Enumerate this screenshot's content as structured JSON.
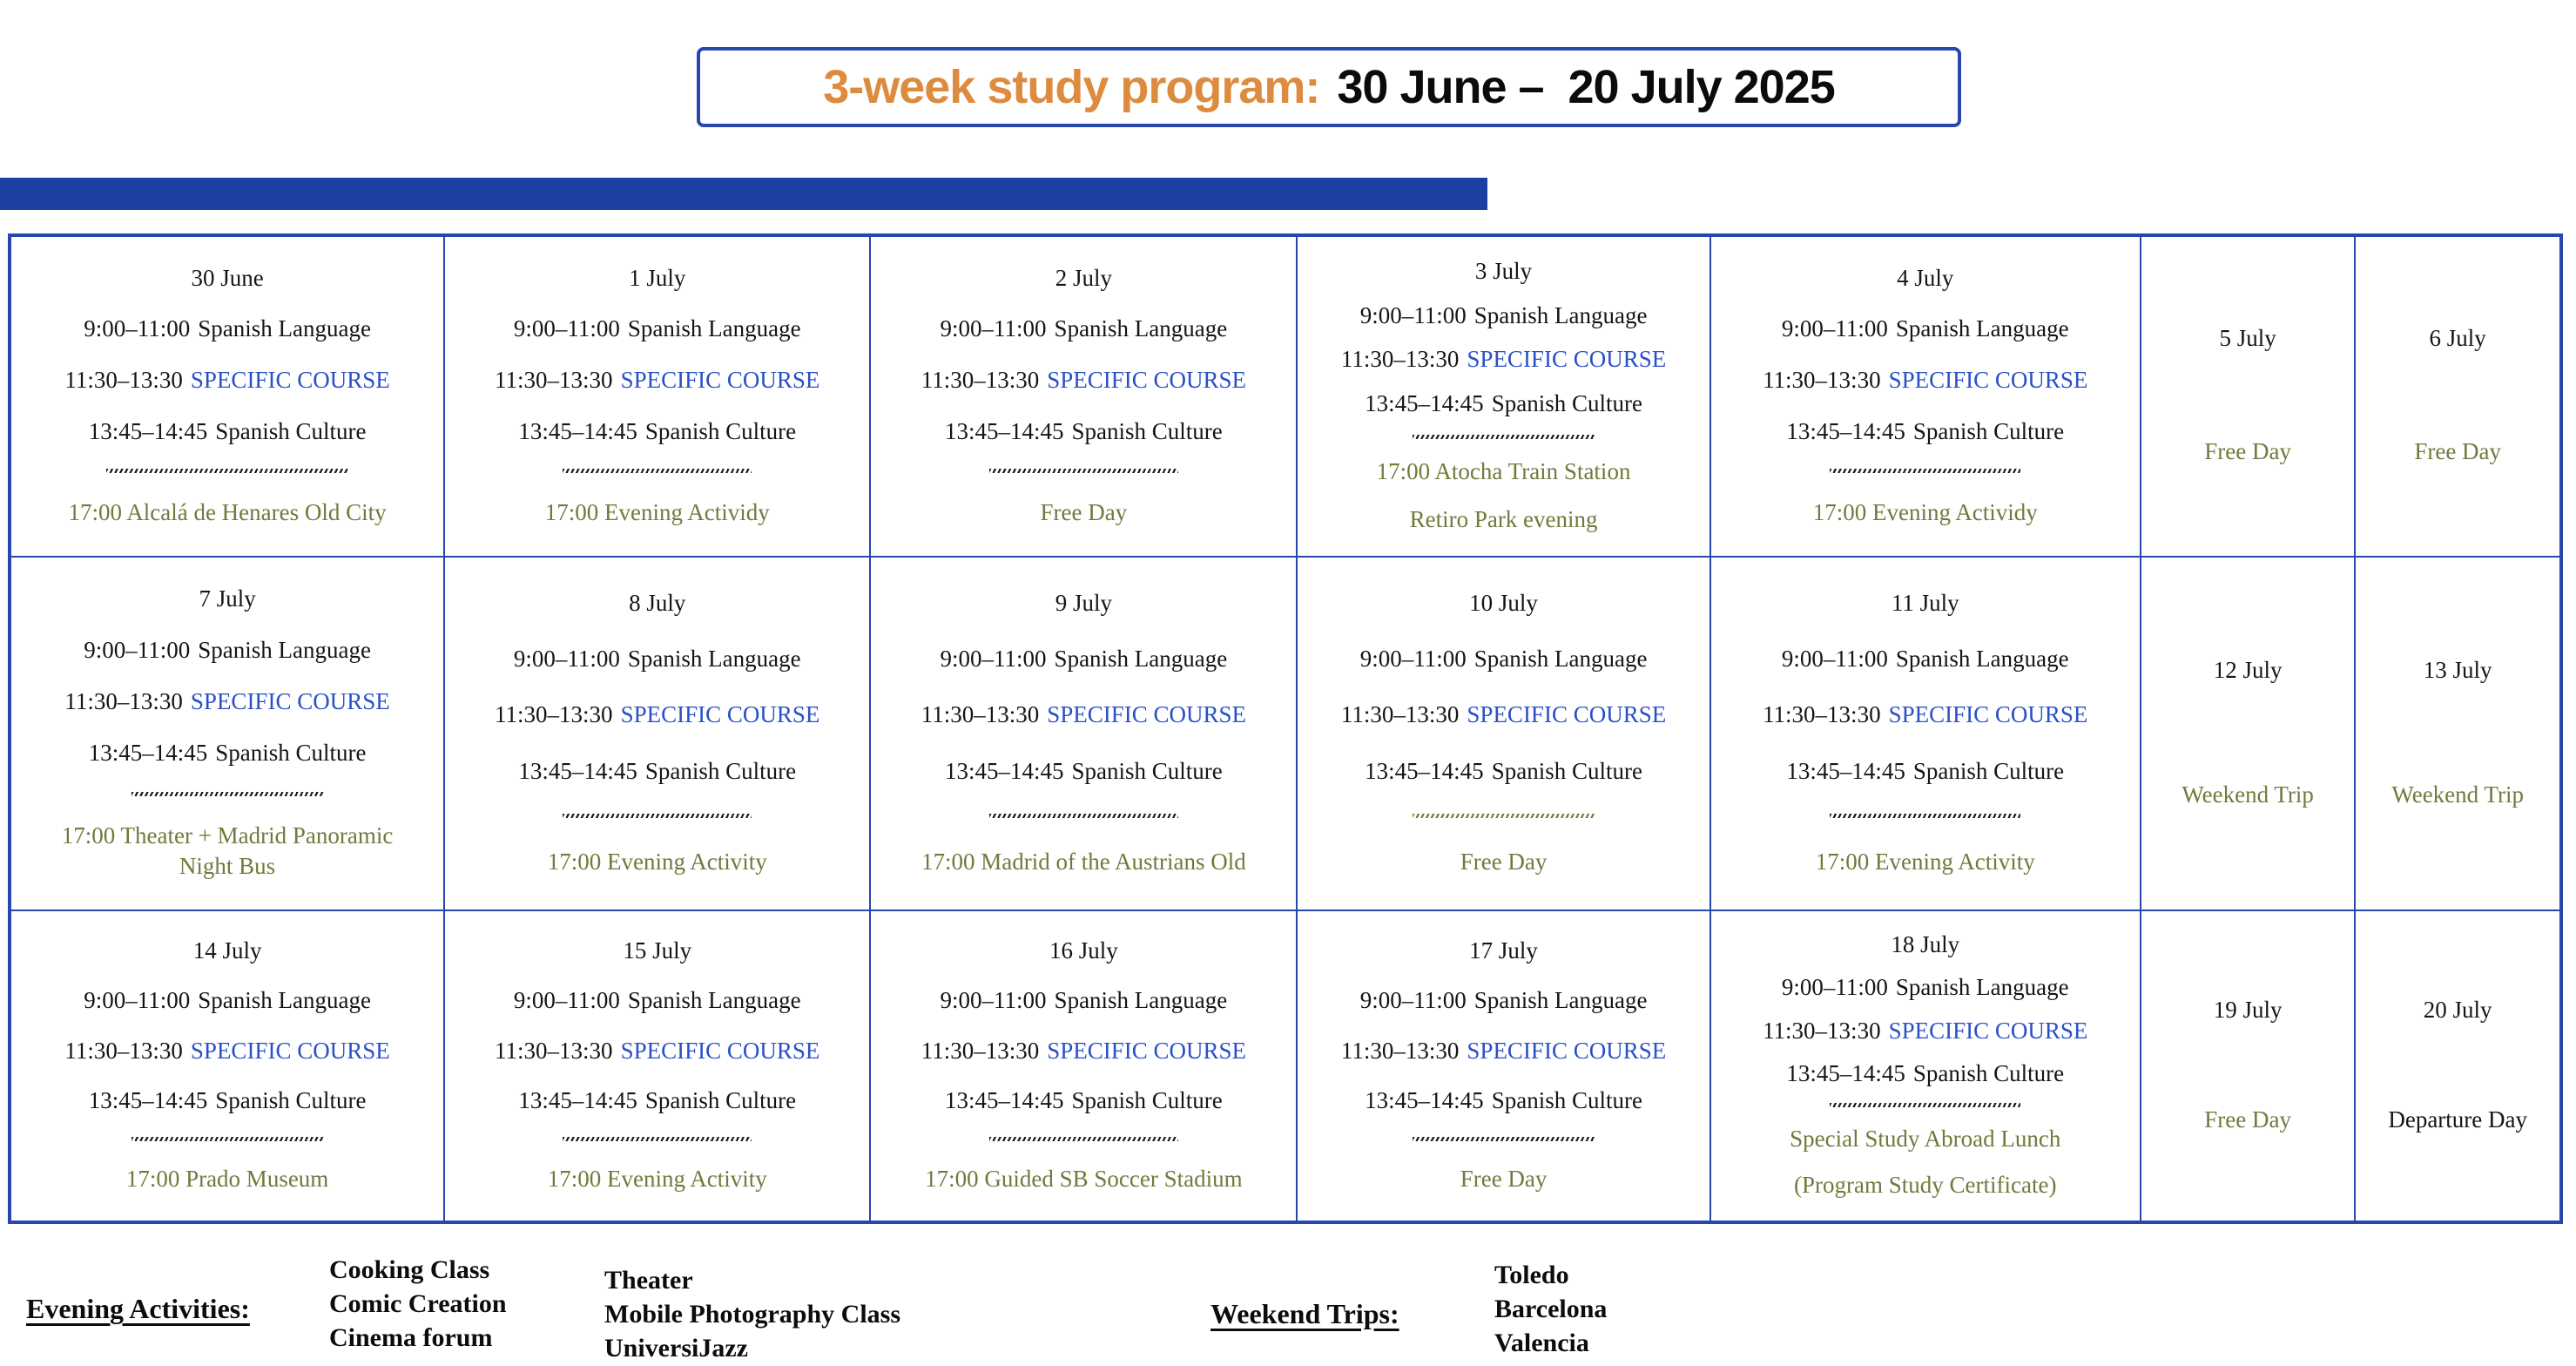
{
  "title": {
    "label": "3-week study program:",
    "dates": "30 June –  20 July 2025"
  },
  "colors": {
    "border_blue": "#2847ae",
    "bar_blue": "#1c3fa3",
    "title_orange": "#dd8b3e",
    "course_blue": "#2a50c8",
    "olive_green": "#6f7b3c",
    "text_ink": "#151515"
  },
  "table": {
    "weeks": [
      [
        {
          "date": "30 June",
          "lines": [
            {
              "t": "class",
              "time": "9:00–11:00",
              "label": "Spanish Language",
              "highlight": false
            },
            {
              "t": "class",
              "time": "11:30–13:30",
              "label": "SPECIFIC COURSE",
              "highlight": true
            },
            {
              "t": "class",
              "time": "13:45–14:45",
              "label": "Spanish Culture",
              "highlight": false
            },
            {
              "t": "divider",
              "color": "#1b1b1b",
              "wide": true
            },
            {
              "t": "act",
              "text": "17:00 Alcalá de Henares Old City",
              "color": "olive"
            }
          ]
        },
        {
          "date": "1 July",
          "lines": [
            {
              "t": "class",
              "time": "9:00–11:00",
              "label": "Spanish Language",
              "highlight": false
            },
            {
              "t": "class",
              "time": "11:30–13:30",
              "label": "SPECIFIC COURSE",
              "highlight": true
            },
            {
              "t": "class",
              "time": "13:45–14:45",
              "label": "Spanish Culture",
              "highlight": false
            },
            {
              "t": "divider",
              "color": "#1b1b1b"
            },
            {
              "t": "act",
              "text": "17:00 Evening Actividy",
              "color": "olive"
            }
          ]
        },
        {
          "date": "2 July",
          "lines": [
            {
              "t": "class",
              "time": "9:00–11:00",
              "label": "Spanish Language",
              "highlight": false
            },
            {
              "t": "class",
              "time": "11:30–13:30",
              "label": "SPECIFIC COURSE",
              "highlight": true
            },
            {
              "t": "class",
              "time": "13:45–14:45",
              "label": "Spanish Culture",
              "highlight": false
            },
            {
              "t": "divider",
              "color": "#1b1b1b"
            },
            {
              "t": "act",
              "text": "Free Day",
              "color": "olive"
            }
          ]
        },
        {
          "date": "3 July",
          "lines": [
            {
              "t": "class",
              "time": "9:00–11:00",
              "label": "Spanish Language",
              "highlight": false
            },
            {
              "t": "class",
              "time": "11:30–13:30",
              "label": "SPECIFIC COURSE",
              "highlight": true
            },
            {
              "t": "class",
              "time": "13:45–14:45",
              "label": "Spanish Culture",
              "highlight": false
            },
            {
              "t": "divider",
              "color": "#1b1b1b"
            },
            {
              "t": "act",
              "text": "17:00 Atocha Train Station",
              "color": "olive"
            },
            {
              "t": "act",
              "text": "Retiro Park evening",
              "color": "olive"
            }
          ]
        },
        {
          "date": "4 July",
          "lines": [
            {
              "t": "class",
              "time": "9:00–11:00",
              "label": "Spanish Language",
              "highlight": false
            },
            {
              "t": "class",
              "time": "11:30–13:30",
              "label": "SPECIFIC COURSE",
              "highlight": true
            },
            {
              "t": "class",
              "time": "13:45–14:45",
              "label": "Spanish Culture",
              "highlight": false
            },
            {
              "t": "divider",
              "color": "#1b1b1b"
            },
            {
              "t": "act",
              "text": "17:00 Evening Actividy",
              "color": "olive"
            }
          ]
        },
        {
          "date": "5 July",
          "weekend": true,
          "lines": [
            {
              "t": "act",
              "text": "Free Day",
              "color": "olive"
            }
          ]
        },
        {
          "date": "6 July",
          "weekend": true,
          "lines": [
            {
              "t": "act",
              "text": "Free Day",
              "color": "olive"
            }
          ]
        }
      ],
      [
        {
          "date": "7 July",
          "lines": [
            {
              "t": "class",
              "time": "9:00–11:00",
              "label": "Spanish Language",
              "highlight": false
            },
            {
              "t": "class",
              "time": "11:30–13:30",
              "label": "SPECIFIC COURSE",
              "highlight": true
            },
            {
              "t": "class",
              "time": "13:45–14:45",
              "label": "Spanish Culture",
              "highlight": false
            },
            {
              "t": "divider",
              "color": "#1b1b1b"
            },
            {
              "t": "act",
              "text": "17:00 Theater + Madrid Panoramic\nNight Bus",
              "color": "olive"
            }
          ]
        },
        {
          "date": "8 July",
          "lines": [
            {
              "t": "class",
              "time": "9:00–11:00",
              "label": "Spanish Language",
              "highlight": false
            },
            {
              "t": "class",
              "time": "11:30–13:30",
              "label": "SPECIFIC COURSE",
              "highlight": true
            },
            {
              "t": "class",
              "time": "13:45–14:45",
              "label": "Spanish Culture",
              "highlight": false
            },
            {
              "t": "divider",
              "color": "#1b1b1b"
            },
            {
              "t": "act",
              "text": "17:00 Evening Activity",
              "color": "olive"
            }
          ]
        },
        {
          "date": "9 July",
          "lines": [
            {
              "t": "class",
              "time": "9:00–11:00",
              "label": "Spanish Language",
              "highlight": false
            },
            {
              "t": "class",
              "time": "11:30–13:30",
              "label": "SPECIFIC COURSE",
              "highlight": true
            },
            {
              "t": "class",
              "time": "13:45–14:45",
              "label": "Spanish Culture",
              "highlight": false
            },
            {
              "t": "divider",
              "color": "#1b1b1b"
            },
            {
              "t": "act",
              "text": "17:00 Madrid of the Austrians Old",
              "color": "olive"
            }
          ]
        },
        {
          "date": "10 July",
          "lines": [
            {
              "t": "class",
              "time": "9:00–11:00",
              "label": "Spanish Language",
              "highlight": false
            },
            {
              "t": "class",
              "time": "11:30–13:30",
              "label": "SPECIFIC COURSE",
              "highlight": true
            },
            {
              "t": "class",
              "time": "13:45–14:45",
              "label": "Spanish Culture",
              "highlight": false
            },
            {
              "t": "divider",
              "color": "#6f7b3c"
            },
            {
              "t": "act",
              "text": "Free Day",
              "color": "olive"
            }
          ]
        },
        {
          "date": "11 July",
          "lines": [
            {
              "t": "class",
              "time": "9:00–11:00",
              "label": "Spanish Language",
              "highlight": false
            },
            {
              "t": "class",
              "time": "11:30–13:30",
              "label": "SPECIFIC COURSE",
              "highlight": true
            },
            {
              "t": "class",
              "time": "13:45–14:45",
              "label": "Spanish Culture",
              "highlight": false
            },
            {
              "t": "divider",
              "color": "#1b1b1b"
            },
            {
              "t": "act",
              "text": "17:00 Evening Activity",
              "color": "olive"
            }
          ]
        },
        {
          "date": "12 July",
          "weekend": true,
          "lines": [
            {
              "t": "act",
              "text": "Weekend Trip",
              "color": "olive"
            }
          ]
        },
        {
          "date": "13 July",
          "weekend": true,
          "lines": [
            {
              "t": "act",
              "text": "Weekend Trip",
              "color": "olive"
            }
          ]
        }
      ],
      [
        {
          "date": "14 July",
          "lines": [
            {
              "t": "class",
              "time": "9:00–11:00",
              "label": "Spanish Language",
              "highlight": false
            },
            {
              "t": "class",
              "time": "11:30–13:30",
              "label": "SPECIFIC COURSE",
              "highlight": true
            },
            {
              "t": "class",
              "time": "13:45–14:45",
              "label": "Spanish Culture",
              "highlight": false
            },
            {
              "t": "divider",
              "color": "#1b1b1b"
            },
            {
              "t": "act",
              "text": "17:00 Prado Museum",
              "color": "olive"
            }
          ]
        },
        {
          "date": "15 July",
          "lines": [
            {
              "t": "class",
              "time": "9:00–11:00",
              "label": "Spanish Language",
              "highlight": false
            },
            {
              "t": "class",
              "time": "11:30–13:30",
              "label": "SPECIFIC COURSE",
              "highlight": true
            },
            {
              "t": "class",
              "time": "13:45–14:45",
              "label": "Spanish Culture",
              "highlight": false
            },
            {
              "t": "divider",
              "color": "#1b1b1b"
            },
            {
              "t": "act",
              "text": "17:00 Evening Activity",
              "color": "olive"
            }
          ]
        },
        {
          "date": "16 July",
          "lines": [
            {
              "t": "class",
              "time": "9:00–11:00",
              "label": "Spanish Language",
              "highlight": false
            },
            {
              "t": "class",
              "time": "11:30–13:30",
              "label": "SPECIFIC COURSE",
              "highlight": true
            },
            {
              "t": "class",
              "time": "13:45–14:45",
              "label": "Spanish Culture",
              "highlight": false
            },
            {
              "t": "divider",
              "color": "#1b1b1b"
            },
            {
              "t": "act",
              "text": "17:00 Guided SB Soccer Stadium",
              "color": "olive"
            }
          ]
        },
        {
          "date": "17 July",
          "lines": [
            {
              "t": "class",
              "time": "9:00–11:00",
              "label": "Spanish Language",
              "highlight": false
            },
            {
              "t": "class",
              "time": "11:30–13:30",
              "label": "SPECIFIC COURSE",
              "highlight": true
            },
            {
              "t": "class",
              "time": "13:45–14:45",
              "label": "Spanish Culture",
              "highlight": false
            },
            {
              "t": "divider",
              "color": "#1b1b1b"
            },
            {
              "t": "act",
              "text": "Free Day",
              "color": "olive"
            }
          ]
        },
        {
          "date": "18 July",
          "lines": [
            {
              "t": "class",
              "time": "9:00–11:00",
              "label": "Spanish Language",
              "highlight": false
            },
            {
              "t": "class",
              "time": "11:30–13:30",
              "label": "SPECIFIC COURSE",
              "highlight": true
            },
            {
              "t": "class",
              "time": "13:45–14:45",
              "label": "Spanish Culture",
              "highlight": false
            },
            {
              "t": "divider",
              "color": "#1b1b1b"
            },
            {
              "t": "act",
              "text": "Special Study Abroad Lunch",
              "color": "olive"
            },
            {
              "t": "act",
              "text": "(Program Study Certificate)",
              "color": "olive"
            }
          ]
        },
        {
          "date": "19 July",
          "weekend": true,
          "lines": [
            {
              "t": "act",
              "text": "Free Day",
              "color": "olive"
            }
          ]
        },
        {
          "date": "20 July",
          "weekend": true,
          "lines": [
            {
              "t": "act",
              "text": "Departure Day",
              "color": "black"
            }
          ]
        }
      ]
    ]
  },
  "legend": {
    "evening_label": "Evening Activities:",
    "evening_groups": [
      [
        "Cooking Class",
        "Comic Creation",
        "Cinema forum"
      ],
      [
        "Theater",
        "Mobile Photography Class",
        "UniversiJazz"
      ]
    ],
    "weekend_label": "Weekend Trips:",
    "weekend_trips": [
      "Toledo",
      "Barcelona",
      "Valencia"
    ]
  }
}
